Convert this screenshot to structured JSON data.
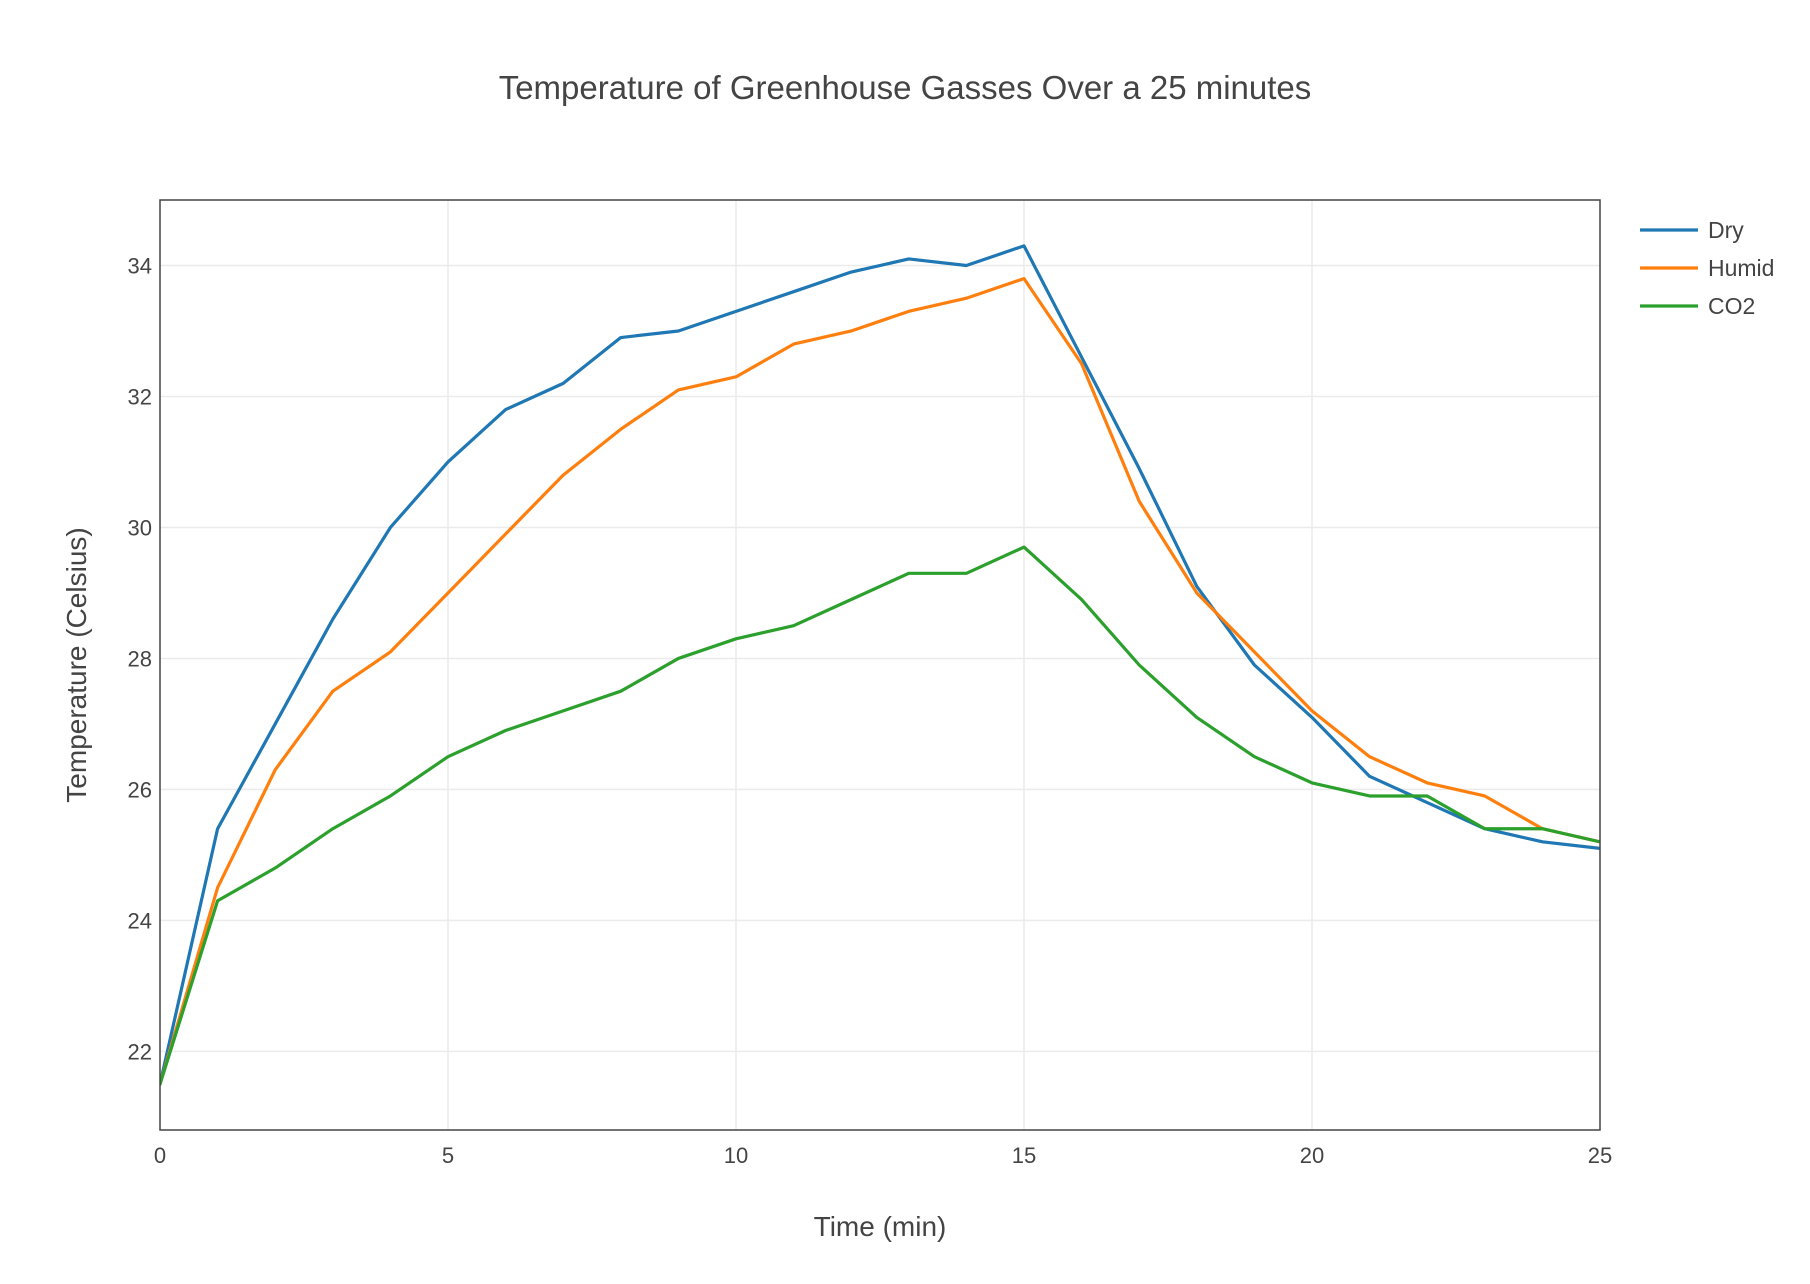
{
  "chart_data": {
    "type": "line",
    "title": "Temperature of Greenhouse Gasses Over a 25 minutes",
    "xlabel": "Time (min)",
    "ylabel": "Temperature (Celsius)",
    "xlim": [
      0,
      25
    ],
    "ylim": [
      20.8,
      35.0
    ],
    "x_ticks": [
      0,
      5,
      10,
      15,
      20,
      25
    ],
    "y_ticks": [
      22,
      24,
      26,
      28,
      30,
      32,
      34
    ],
    "grid": true,
    "legend_position": "top-right outside",
    "x": [
      0,
      1,
      2,
      3,
      4,
      5,
      6,
      7,
      8,
      9,
      10,
      11,
      12,
      13,
      14,
      15,
      16,
      17,
      18,
      19,
      20,
      21,
      22,
      23,
      24,
      25
    ],
    "series": [
      {
        "name": "Dry",
        "color": "#1f77b4",
        "values": [
          21.5,
          25.4,
          27.0,
          28.6,
          30.0,
          31.0,
          31.8,
          32.2,
          32.9,
          33.0,
          33.3,
          33.6,
          33.9,
          34.1,
          34.0,
          34.3,
          32.6,
          30.9,
          29.1,
          27.9,
          27.1,
          26.2,
          25.8,
          25.4,
          25.2,
          25.1
        ]
      },
      {
        "name": "Humid",
        "color": "#ff7f0e",
        "values": [
          21.5,
          24.5,
          26.3,
          27.5,
          28.1,
          29.0,
          29.9,
          30.8,
          31.5,
          32.1,
          32.3,
          32.8,
          33.0,
          33.3,
          33.5,
          33.8,
          32.5,
          30.4,
          29.0,
          28.1,
          27.2,
          26.5,
          26.1,
          25.9,
          25.4,
          25.2
        ]
      },
      {
        "name": "CO2",
        "color": "#2ca02c",
        "values": [
          21.5,
          24.3,
          24.8,
          25.4,
          25.9,
          26.5,
          26.9,
          27.2,
          27.5,
          28.0,
          28.3,
          28.5,
          28.9,
          29.3,
          29.3,
          29.7,
          28.9,
          27.9,
          27.1,
          26.5,
          26.1,
          25.9,
          25.9,
          25.4,
          25.4,
          25.2
        ]
      }
    ]
  },
  "style": {
    "grid_color": "#ebebeb",
    "axis_color": "#444444",
    "background": "#ffffff"
  }
}
